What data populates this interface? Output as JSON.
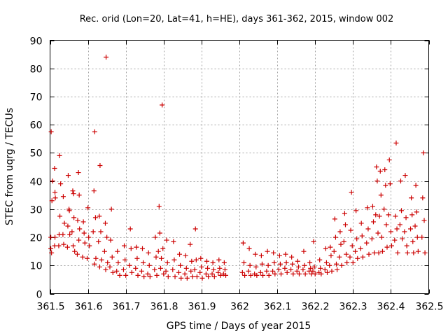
{
  "chart_data": {
    "type": "scatter",
    "title": "Rec. orid (Lon=20, Lat=41, h=HE), days 361-362, 2015, window 002",
    "xlabel": "GPS time / Days of year 2015",
    "ylabel": "STEC from uqrg / TECUs",
    "xlim": [
      361.5,
      362.5
    ],
    "ylim": [
      0,
      90
    ],
    "xticks": [
      "361.5",
      "361.6",
      "361.7",
      "361.8",
      "361.9",
      "362",
      "362.1",
      "362.2",
      "362.3",
      "362.4",
      "362.5"
    ],
    "yticks": [
      "0",
      "10",
      "20",
      "30",
      "40",
      "50",
      "60",
      "70",
      "80",
      "90"
    ],
    "grid": true,
    "marker": "plus",
    "color": "#cc0000",
    "series": [
      {
        "points": [
          [
            361.503,
            57.5
          ],
          [
            361.507,
            40.0
          ],
          [
            361.505,
            33.0
          ],
          [
            361.502,
            20.0
          ],
          [
            361.502,
            16.0
          ],
          [
            361.504,
            14.5
          ],
          [
            361.512,
            44.5
          ],
          [
            361.513,
            36.0
          ],
          [
            361.514,
            34.0
          ],
          [
            361.513,
            20.0
          ],
          [
            361.512,
            17.0
          ],
          [
            361.525,
            49.0
          ],
          [
            361.528,
            39.0
          ],
          [
            361.526,
            27.5
          ],
          [
            361.524,
            21.0
          ],
          [
            361.523,
            17.0
          ],
          [
            361.535,
            34.5
          ],
          [
            361.538,
            25.0
          ],
          [
            361.534,
            21.0
          ],
          [
            361.536,
            17.5
          ],
          [
            361.548,
            42.0
          ],
          [
            361.55,
            30.0
          ],
          [
            361.551,
            29.5
          ],
          [
            361.547,
            24.0
          ],
          [
            361.552,
            21.0
          ],
          [
            361.546,
            16.5
          ],
          [
            361.56,
            36.5
          ],
          [
            361.562,
            35.5
          ],
          [
            361.563,
            27.0
          ],
          [
            361.558,
            22.0
          ],
          [
            361.561,
            17.0
          ],
          [
            361.565,
            15.0
          ],
          [
            361.575,
            43.0
          ],
          [
            361.577,
            35.0
          ],
          [
            361.573,
            26.0
          ],
          [
            361.578,
            23.0
          ],
          [
            361.576,
            19.0
          ],
          [
            361.572,
            14.0
          ],
          [
            361.588,
            25.5
          ],
          [
            361.59,
            21.5
          ],
          [
            361.592,
            18.0
          ],
          [
            361.586,
            13.0
          ],
          [
            361.6,
            30.5
          ],
          [
            361.602,
            20.0
          ],
          [
            361.604,
            17.0
          ],
          [
            361.598,
            12.5
          ],
          [
            361.618,
            57.5
          ],
          [
            361.616,
            36.5
          ],
          [
            361.62,
            27.0
          ],
          [
            361.614,
            22.0
          ],
          [
            361.621,
            12.5
          ],
          [
            361.617,
            10.5
          ],
          [
            361.632,
            45.5
          ],
          [
            361.63,
            27.5
          ],
          [
            361.634,
            22.0
          ],
          [
            361.628,
            18.5
          ],
          [
            361.636,
            12.0
          ],
          [
            361.631,
            9.5
          ],
          [
            361.648,
            84.0
          ],
          [
            361.646,
            25.0
          ],
          [
            361.65,
            20.0
          ],
          [
            361.644,
            15.0
          ],
          [
            361.652,
            11.0
          ],
          [
            361.647,
            8.5
          ],
          [
            361.662,
            30.0
          ],
          [
            361.66,
            19.0
          ],
          [
            361.664,
            13.0
          ],
          [
            361.658,
            9.5
          ],
          [
            361.666,
            7.5
          ],
          [
            361.678,
            15.0
          ],
          [
            361.68,
            11.0
          ],
          [
            361.676,
            8.0
          ],
          [
            361.684,
            6.5
          ],
          [
            361.696,
            17.0
          ],
          [
            361.698,
            12.0
          ],
          [
            361.694,
            8.5
          ],
          [
            361.7,
            6.5
          ],
          [
            361.712,
            23.0
          ],
          [
            361.714,
            16.0
          ],
          [
            361.71,
            10.0
          ],
          [
            361.716,
            7.5
          ],
          [
            361.728,
            16.5
          ],
          [
            361.73,
            12.5
          ],
          [
            361.726,
            9.0
          ],
          [
            361.732,
            6.5
          ],
          [
            361.744,
            16.0
          ],
          [
            361.746,
            11.0
          ],
          [
            361.742,
            8.0
          ],
          [
            361.748,
            6.0
          ],
          [
            361.76,
            14.5
          ],
          [
            361.762,
            10.0
          ],
          [
            361.758,
            7.0
          ],
          [
            361.764,
            6.0
          ],
          [
            361.778,
            20.0
          ],
          [
            361.78,
            13.0
          ],
          [
            361.776,
            8.5
          ],
          [
            361.782,
            6.5
          ],
          [
            361.788,
            31.0
          ],
          [
            361.79,
            21.5
          ],
          [
            361.786,
            15.0
          ],
          [
            361.792,
            9.0
          ],
          [
            361.796,
            67.0
          ],
          [
            361.798,
            16.0
          ],
          [
            361.794,
            12.5
          ],
          [
            361.8,
            7.0
          ],
          [
            361.808,
            19.0
          ],
          [
            361.81,
            11.0
          ],
          [
            361.806,
            8.0
          ],
          [
            361.812,
            6.0
          ],
          [
            361.826,
            18.5
          ],
          [
            361.828,
            12.0
          ],
          [
            361.824,
            8.5
          ],
          [
            361.83,
            6.0
          ],
          [
            361.842,
            14.0
          ],
          [
            361.844,
            10.0
          ],
          [
            361.84,
            7.5
          ],
          [
            361.846,
            5.5
          ],
          [
            361.858,
            13.5
          ],
          [
            361.86,
            9.0
          ],
          [
            361.856,
            7.0
          ],
          [
            361.862,
            5.5
          ],
          [
            361.87,
            17.5
          ],
          [
            361.874,
            11.5
          ],
          [
            361.872,
            8.0
          ],
          [
            361.876,
            6.0
          ],
          [
            361.884,
            23.0
          ],
          [
            361.886,
            12.0
          ],
          [
            361.882,
            8.5
          ],
          [
            361.888,
            6.0
          ],
          [
            361.898,
            12.5
          ],
          [
            361.9,
            9.5
          ],
          [
            361.896,
            7.5
          ],
          [
            361.902,
            5.5
          ],
          [
            361.914,
            11.5
          ],
          [
            361.916,
            9.0
          ],
          [
            361.912,
            7.0
          ],
          [
            361.918,
            6.0
          ],
          [
            361.93,
            11.0
          ],
          [
            361.932,
            8.5
          ],
          [
            361.928,
            7.0
          ],
          [
            361.934,
            6.0
          ],
          [
            361.946,
            12.0
          ],
          [
            361.948,
            9.0
          ],
          [
            361.944,
            7.5
          ],
          [
            361.95,
            6.5
          ],
          [
            361.96,
            11.0
          ],
          [
            361.962,
            8.5
          ],
          [
            361.958,
            7.0
          ],
          [
            361.964,
            6.5
          ],
          [
            362.01,
            18.0
          ],
          [
            362.012,
            11.0
          ],
          [
            362.008,
            7.5
          ],
          [
            362.014,
            6.5
          ],
          [
            362.026,
            16.0
          ],
          [
            362.028,
            10.0
          ],
          [
            362.024,
            8.0
          ],
          [
            362.03,
            6.5
          ],
          [
            362.042,
            14.0
          ],
          [
            362.044,
            9.5
          ],
          [
            362.04,
            7.0
          ],
          [
            362.046,
            6.5
          ],
          [
            362.058,
            13.5
          ],
          [
            362.06,
            10.5
          ],
          [
            362.056,
            7.5
          ],
          [
            362.062,
            6.5
          ],
          [
            362.074,
            15.0
          ],
          [
            362.076,
            10.0
          ],
          [
            362.072,
            8.0
          ],
          [
            362.078,
            6.5
          ],
          [
            362.09,
            14.5
          ],
          [
            362.092,
            11.0
          ],
          [
            362.088,
            8.0
          ],
          [
            362.094,
            7.0
          ],
          [
            362.106,
            13.5
          ],
          [
            362.108,
            10.5
          ],
          [
            362.104,
            8.5
          ],
          [
            362.11,
            7.0
          ],
          [
            362.122,
            14.0
          ],
          [
            362.124,
            11.0
          ],
          [
            362.12,
            9.0
          ],
          [
            362.126,
            7.5
          ],
          [
            362.138,
            13.0
          ],
          [
            362.14,
            10.5
          ],
          [
            362.136,
            8.5
          ],
          [
            362.142,
            7.0
          ],
          [
            362.154,
            11.5
          ],
          [
            362.156,
            9.5
          ],
          [
            362.152,
            8.0
          ],
          [
            362.158,
            7.0
          ],
          [
            362.17,
            15.0
          ],
          [
            362.172,
            10.0
          ],
          [
            362.168,
            8.5
          ],
          [
            362.174,
            7.0
          ],
          [
            362.186,
            11.0
          ],
          [
            362.188,
            9.0
          ],
          [
            362.184,
            8.0
          ],
          [
            362.19,
            7.0
          ],
          [
            362.196,
            18.5
          ],
          [
            362.198,
            9.5
          ],
          [
            362.194,
            8.0
          ],
          [
            362.2,
            7.0
          ],
          [
            362.212,
            12.0
          ],
          [
            362.214,
            9.0
          ],
          [
            362.21,
            7.5
          ],
          [
            362.216,
            7.0
          ],
          [
            362.228,
            16.0
          ],
          [
            362.23,
            11.0
          ],
          [
            362.226,
            8.5
          ],
          [
            362.232,
            7.5
          ],
          [
            362.24,
            16.5
          ],
          [
            362.242,
            13.5
          ],
          [
            362.238,
            10.0
          ],
          [
            362.244,
            8.0
          ],
          [
            362.252,
            26.5
          ],
          [
            362.254,
            20.0
          ],
          [
            362.25,
            15.0
          ],
          [
            362.256,
            10.5
          ],
          [
            362.258,
            8.5
          ],
          [
            362.266,
            22.0
          ],
          [
            362.268,
            17.5
          ],
          [
            362.264,
            13.0
          ],
          [
            362.27,
            10.0
          ],
          [
            362.278,
            28.5
          ],
          [
            362.28,
            24.5
          ],
          [
            362.276,
            18.5
          ],
          [
            362.282,
            14.0
          ],
          [
            362.284,
            11.0
          ],
          [
            362.296,
            36.0
          ],
          [
            362.294,
            22.5
          ],
          [
            362.298,
            17.0
          ],
          [
            362.292,
            13.0
          ],
          [
            362.3,
            11.0
          ],
          [
            362.308,
            29.5
          ],
          [
            362.31,
            19.5
          ],
          [
            362.306,
            15.0
          ],
          [
            362.312,
            12.5
          ],
          [
            362.322,
            25.0
          ],
          [
            362.324,
            20.5
          ],
          [
            362.32,
            16.0
          ],
          [
            362.326,
            13.0
          ],
          [
            362.338,
            30.5
          ],
          [
            362.34,
            23.0
          ],
          [
            362.336,
            18.0
          ],
          [
            362.342,
            14.0
          ],
          [
            362.352,
            31.0
          ],
          [
            362.354,
            25.5
          ],
          [
            362.35,
            19.5
          ],
          [
            362.356,
            14.5
          ],
          [
            362.362,
            45.0
          ],
          [
            362.364,
            40.0
          ],
          [
            362.36,
            28.0
          ],
          [
            362.366,
            21.5
          ],
          [
            362.368,
            14.5
          ],
          [
            362.372,
            43.5
          ],
          [
            362.374,
            35.0
          ],
          [
            362.37,
            27.5
          ],
          [
            362.376,
            20.0
          ],
          [
            362.378,
            15.0
          ],
          [
            362.384,
            44.0
          ],
          [
            362.386,
            38.5
          ],
          [
            362.382,
            30.0
          ],
          [
            362.388,
            24.5
          ],
          [
            362.39,
            16.5
          ],
          [
            362.396,
            47.5
          ],
          [
            362.398,
            39.0
          ],
          [
            362.394,
            28.0
          ],
          [
            362.4,
            22.0
          ],
          [
            362.402,
            17.0
          ],
          [
            362.414,
            53.5
          ],
          [
            362.412,
            27.5
          ],
          [
            362.416,
            23.0
          ],
          [
            362.41,
            19.0
          ],
          [
            362.418,
            14.5
          ],
          [
            362.426,
            40.0
          ],
          [
            362.428,
            29.5
          ],
          [
            362.424,
            24.5
          ],
          [
            362.43,
            19.5
          ],
          [
            362.438,
            42.0
          ],
          [
            362.44,
            27.0
          ],
          [
            362.436,
            22.0
          ],
          [
            362.442,
            17.0
          ],
          [
            362.444,
            14.5
          ],
          [
            362.454,
            34.0
          ],
          [
            362.456,
            28.0
          ],
          [
            362.452,
            23.0
          ],
          [
            362.458,
            18.5
          ],
          [
            362.46,
            14.5
          ],
          [
            362.466,
            38.5
          ],
          [
            362.468,
            29.0
          ],
          [
            362.464,
            24.0
          ],
          [
            362.47,
            20.0
          ],
          [
            362.472,
            15.0
          ],
          [
            362.486,
            50.0
          ],
          [
            362.484,
            34.0
          ],
          [
            362.488,
            26.0
          ],
          [
            362.482,
            20.0
          ],
          [
            362.49,
            14.5
          ]
        ]
      }
    ]
  }
}
